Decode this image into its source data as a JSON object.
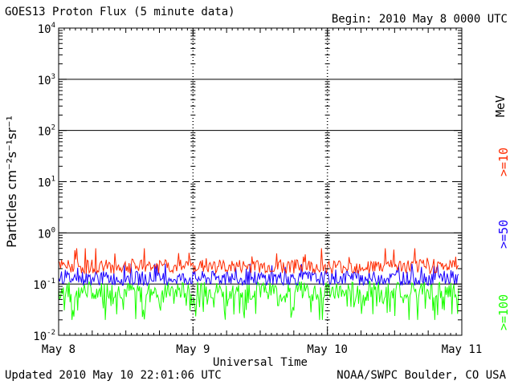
{
  "header": {
    "title": "GOES13 Proton Flux (5 minute data)",
    "begin": "Begin: 2010 May 8 0000 UTC"
  },
  "footer": {
    "updated": "Updated 2010 May 10 22:01:06 UTC",
    "credit": "NOAA/SWPC Boulder, CO USA"
  },
  "colors": {
    "p10": "#ff2a00",
    "p50": "#1a00ff",
    "p100": "#1aff00",
    "axis": "#000000"
  },
  "chart_data": {
    "type": "line",
    "xlabel": "Universal Time",
    "ylabel": "Particles cm⁻²s⁻¹sr⁻¹",
    "y_scale": "log",
    "ylim": [
      0.01,
      10000
    ],
    "yticks": [
      {
        "base": "10",
        "exp": "4"
      },
      {
        "base": "10",
        "exp": "3"
      },
      {
        "base": "10",
        "exp": "2"
      },
      {
        "base": "10",
        "exp": "1"
      },
      {
        "base": "10",
        "exp": "0"
      },
      {
        "base": "10",
        "exp": "-1"
      },
      {
        "base": "10",
        "exp": "-2"
      }
    ],
    "xticks": [
      "May 8",
      "May 9",
      "May 10",
      "May 11"
    ],
    "unit_label": "MeV",
    "grid": {
      "horizontal_solid": [
        1000,
        100,
        1,
        0.1
      ],
      "horizontal_dashed": [
        10
      ]
    },
    "series": [
      {
        "name": ">=10",
        "color": "#ff2a00",
        "typical_value": 0.22,
        "range": [
          0.16,
          0.5
        ]
      },
      {
        "name": ">=50",
        "color": "#1a00ff",
        "typical_value": 0.13,
        "range": [
          0.09,
          0.25
        ]
      },
      {
        "name": ">=100",
        "color": "#1aff00",
        "typical_value": 0.07,
        "range": [
          0.02,
          0.12
        ]
      }
    ]
  }
}
